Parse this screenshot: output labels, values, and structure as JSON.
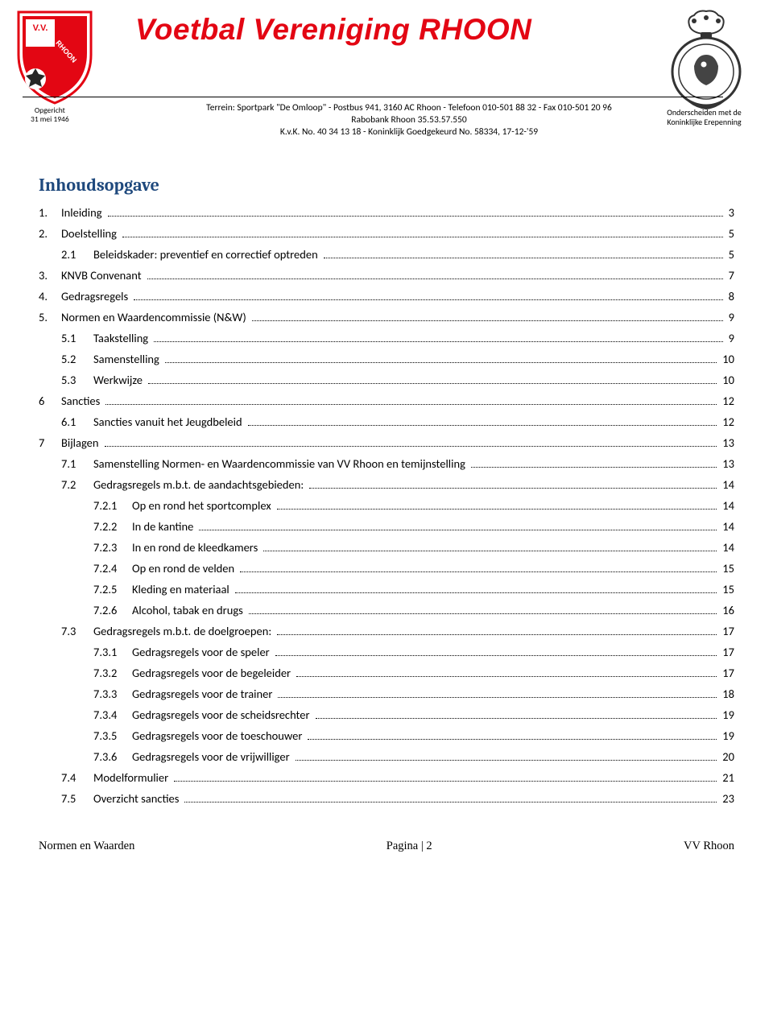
{
  "header": {
    "title": "Voetbal Vereniging RHOON",
    "founded_line1": "Opgericht",
    "founded_line2": "31 mei 1946",
    "address_line1": "Terrein: Sportpark \"De Omloop\" - Postbus 941, 3160 AC Rhoon - Telefoon 010-501 88 32 - Fax 010-501 20 96",
    "address_line2": "Rabobank Rhoon 35.53.57.550",
    "address_line3": "K.v.K. No. 40 34 13 18 - Koninklijk Goedgekeurd No. 58334, 17-12-'59",
    "distinction_line1": "Onderscheiden met de",
    "distinction_line2": "Koninklijke Erepenning",
    "logo_text_top": "V.V.",
    "logo_text_main": "RHOON",
    "colors": {
      "title_red": "#e30613",
      "toc_title_blue": "#1f497d"
    }
  },
  "toc_title": "Inhoudsopgave",
  "toc": [
    {
      "level": 1,
      "num": "1.",
      "label": "Inleiding",
      "page": "3"
    },
    {
      "level": 1,
      "num": "2.",
      "label": "Doelstelling",
      "page": "5"
    },
    {
      "level": 2,
      "num": "2.1",
      "label": "Beleidskader: preventief en correctief optreden",
      "page": "5"
    },
    {
      "level": 1,
      "num": "3.",
      "label": "KNVB Convenant",
      "page": "7"
    },
    {
      "level": 1,
      "num": "4.",
      "label": "Gedragsregels",
      "page": "8"
    },
    {
      "level": 1,
      "num": "5.",
      "label": "Normen en Waardencommissie (N&W)",
      "page": "9"
    },
    {
      "level": 2,
      "num": "5.1",
      "label": "Taakstelling",
      "page": "9"
    },
    {
      "level": 2,
      "num": "5.2",
      "label": "Samenstelling",
      "page": "10"
    },
    {
      "level": 2,
      "num": "5.3",
      "label": "Werkwijze",
      "page": "10"
    },
    {
      "level": 1,
      "num": "6",
      "label": "Sancties",
      "page": "12"
    },
    {
      "level": 2,
      "num": "6.1",
      "label": "Sancties vanuit het Jeugdbeleid",
      "page": "12"
    },
    {
      "level": 1,
      "num": "7",
      "label": "Bijlagen",
      "page": "13"
    },
    {
      "level": 2,
      "num": "7.1",
      "label": "Samenstelling Normen- en Waardencommissie van VV Rhoon en temijnstelling",
      "page": "13"
    },
    {
      "level": 2,
      "num": "7.2",
      "label": "Gedragsregels m.b.t. de aandachtsgebieden:",
      "page": "14"
    },
    {
      "level": 3,
      "num": "7.2.1",
      "label": "Op en rond het sportcomplex",
      "page": "14"
    },
    {
      "level": 3,
      "num": "7.2.2",
      "label": "In de kantine",
      "page": "14"
    },
    {
      "level": 3,
      "num": "7.2.3",
      "label": "In en rond de kleedkamers",
      "page": "14"
    },
    {
      "level": 3,
      "num": "7.2.4",
      "label": "Op en rond de velden",
      "page": "15"
    },
    {
      "level": 3,
      "num": "7.2.5",
      "label": "Kleding en materiaal",
      "page": "15"
    },
    {
      "level": 3,
      "num": "7.2.6",
      "label": "Alcohol, tabak en drugs",
      "page": "16"
    },
    {
      "level": 2,
      "num": "7.3",
      "label": "Gedragsregels m.b.t. de doelgroepen:",
      "page": "17"
    },
    {
      "level": 3,
      "num": "7.3.1",
      "label": "Gedragsregels voor de speler",
      "page": "17"
    },
    {
      "level": 3,
      "num": "7.3.2",
      "label": "Gedragsregels voor de begeleider",
      "page": "17"
    },
    {
      "level": 3,
      "num": "7.3.3",
      "label": "Gedragsregels voor de trainer",
      "page": "18"
    },
    {
      "level": 3,
      "num": "7.3.4",
      "label": "Gedragsregels voor de scheidsrechter",
      "page": "19"
    },
    {
      "level": 3,
      "num": "7.3.5",
      "label": "Gedragsregels voor de toeschouwer",
      "page": "19"
    },
    {
      "level": 3,
      "num": "7.3.6",
      "label": "Gedragsregels voor de vrijwilliger",
      "page": "20"
    },
    {
      "level": 2,
      "num": "7.4",
      "label": "Modelformulier",
      "page": "21"
    },
    {
      "level": 2,
      "num": "7.5",
      "label": "Overzicht sancties",
      "page": "23"
    }
  ],
  "footer": {
    "left": "Normen en Waarden",
    "center": "Pagina | 2",
    "right": "VV Rhoon"
  }
}
